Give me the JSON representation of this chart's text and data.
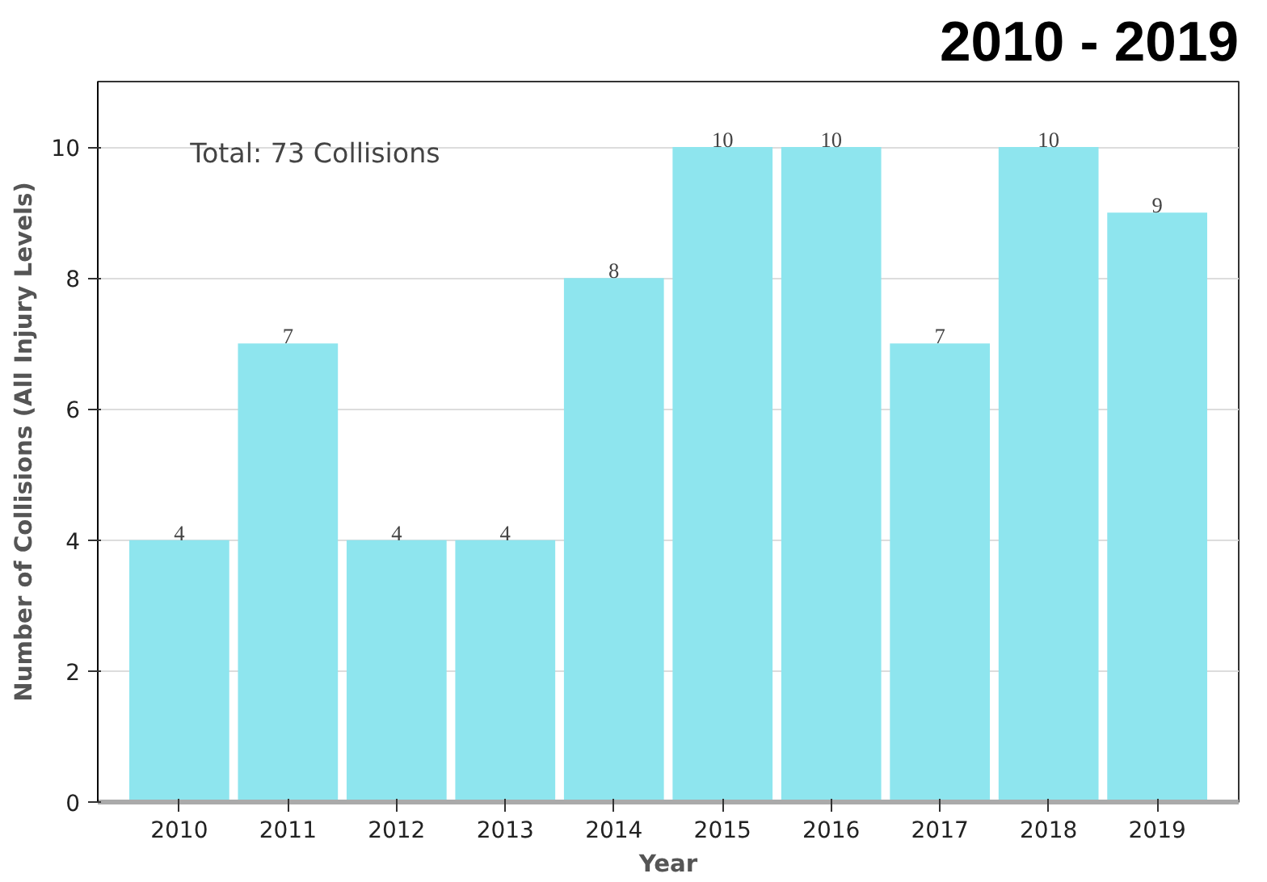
{
  "chart_data": {
    "type": "bar",
    "title": "2010 - 2019",
    "xlabel": "Year",
    "ylabel": "Number of Collisions (All Injury Levels)",
    "categories": [
      "2010",
      "2011",
      "2012",
      "2013",
      "2014",
      "2015",
      "2016",
      "2017",
      "2018",
      "2019"
    ],
    "values": [
      4,
      7,
      4,
      4,
      8,
      10,
      10,
      7,
      10,
      9
    ],
    "color": "#8ee5ee",
    "ylim": [
      0,
      11
    ],
    "yticks": [
      0,
      2,
      4,
      6,
      8,
      10
    ],
    "grid": "y",
    "data_labels": true,
    "annotations": [
      "Total: 73 Collisions"
    ]
  }
}
